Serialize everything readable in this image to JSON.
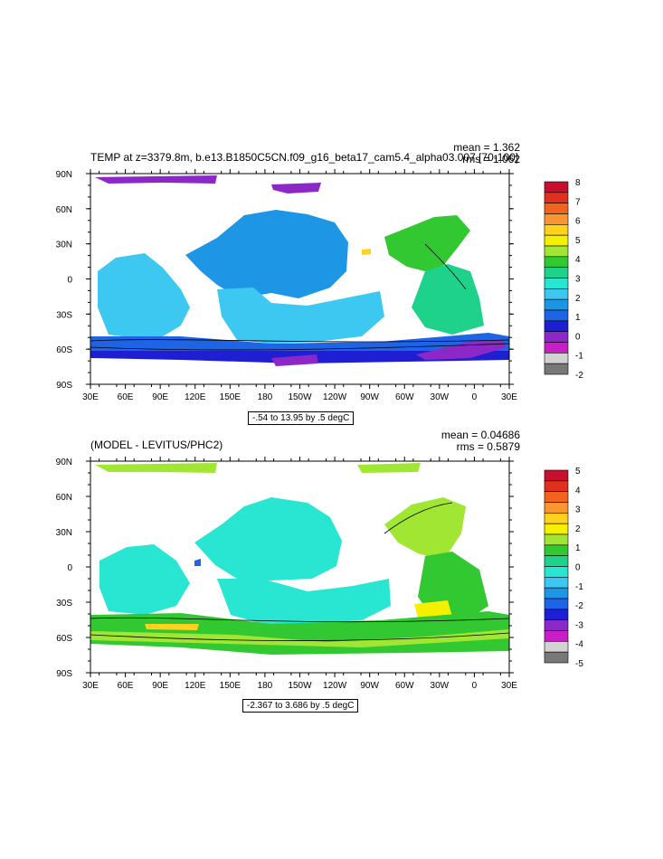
{
  "chart_data": [
    {
      "type": "heatmap",
      "title": "TEMP at z=3379.8m, b.e13.B1850C5CN.f09_g16_beta17_cam5.4_alpha03.007 [70-100]",
      "stats": {
        "mean": "mean = 1.362",
        "rms": "rms = 1.062"
      },
      "range_label": "-.54 to 13.95 by .5 degC",
      "xticks": [
        "30E",
        "60E",
        "90E",
        "120E",
        "150E",
        "180",
        "150W",
        "120W",
        "90W",
        "60W",
        "30W",
        "0",
        "30E"
      ],
      "yticks": [
        "90N",
        "60N",
        "30N",
        "0",
        "30S",
        "60S",
        "90S"
      ],
      "colorbar": {
        "labels": [
          "8",
          "7",
          "6",
          "5",
          "4",
          "3",
          "2",
          "1",
          "0",
          "-1",
          "-2"
        ],
        "colors": [
          "#c8102e",
          "#e0301e",
          "#f0641e",
          "#fa9632",
          "#ffd21e",
          "#f5f000",
          "#a0e632",
          "#32c832",
          "#1ed28c",
          "#28e6d2",
          "#3cc8f0",
          "#1e96e6",
          "#1e64e6",
          "#1e1ed2",
          "#8c28c8",
          "#c81ec8",
          "#d2d2d2",
          "#787878"
        ],
        "min": -2,
        "max": 8
      },
      "value_range": [
        -0.54,
        13.95
      ],
      "contour_interval": 0.5,
      "units": "degC"
    },
    {
      "type": "heatmap",
      "title": "(MODEL - LEVITUS/PHC2)",
      "stats": {
        "mean": "mean = 0.04686",
        "rms": "rms = 0.5879"
      },
      "range_label": "-2.367 to 3.686 by .5 degC",
      "xticks": [
        "30E",
        "60E",
        "90E",
        "120E",
        "150E",
        "180",
        "150W",
        "120W",
        "90W",
        "60W",
        "30W",
        "0",
        "30E"
      ],
      "yticks": [
        "90N",
        "60N",
        "30N",
        "0",
        "30S",
        "60S",
        "90S"
      ],
      "colorbar": {
        "labels": [
          "5",
          "4",
          "3",
          "2",
          "1",
          "0",
          "-1",
          "-2",
          "-3",
          "-4",
          "-5"
        ],
        "colors": [
          "#c8102e",
          "#e0301e",
          "#f0641e",
          "#fa9632",
          "#ffd21e",
          "#f5f000",
          "#a0e632",
          "#32c832",
          "#1ed28c",
          "#28e6d2",
          "#3cc8f0",
          "#1e96e6",
          "#1e64e6",
          "#1e1ed2",
          "#8c28c8",
          "#c81ec8",
          "#d2d2d2",
          "#787878"
        ],
        "min": -5,
        "max": 5
      },
      "value_range": [
        -2.367,
        3.686
      ],
      "contour_interval": 0.5,
      "units": "degC"
    }
  ]
}
